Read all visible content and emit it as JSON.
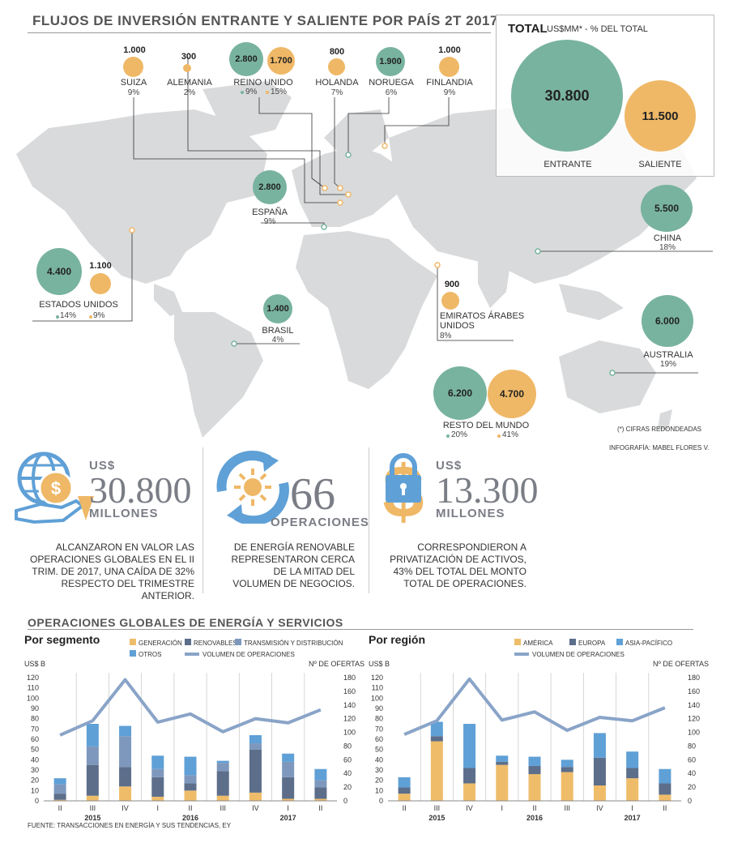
{
  "title": "FLUJOS DE INVERSIÓN ENTRANTE Y SALIENTE POR PAÍS 2T 2017",
  "colors": {
    "entrante": "#78b39f",
    "saliente": "#efb867",
    "map": "#d9dadb",
    "generacion": "#efbd6a",
    "renovables": "#5c6e8a",
    "transmision": "#7e98bd",
    "otros": "#5fa0d6",
    "volumen": "#8aa4c8"
  },
  "total": {
    "label": "TOTAL",
    "units": "US$MM* - % DEL TOTAL",
    "entrante_value": "30.800",
    "saliente_value": "11.500",
    "entrante_label": "ENTRANTE",
    "saliente_label": "SALIENTE"
  },
  "countries": {
    "suiza": {
      "name": "SUIZA",
      "value": "1.000",
      "pct": "9%"
    },
    "alemania": {
      "name": "ALEMANIA",
      "value": "300",
      "pct": "2%"
    },
    "reino_unido": {
      "name": "REINO UNIDO",
      "value_in": "2.800",
      "value_out": "1.700",
      "pct_in": "9%",
      "pct_out": "15%"
    },
    "holanda": {
      "name": "HOLANDA",
      "value": "800",
      "pct": "7%"
    },
    "noruega": {
      "name": "NORUEGA",
      "value": "1.900",
      "pct": "6%"
    },
    "finlandia": {
      "name": "FINLANDIA",
      "value": "1.000",
      "pct": "9%"
    },
    "espana": {
      "name": "ESPAÑA",
      "value": "2.800",
      "pct": "9%"
    },
    "china": {
      "name": "CHINA",
      "value": "5.500",
      "pct": "18%"
    },
    "estados_unidos": {
      "name": "ESTADOS UNIDOS",
      "value_in": "4.400",
      "value_out": "1.100",
      "pct_in": "14%",
      "pct_out": "9%"
    },
    "brasil": {
      "name": "BRASIL",
      "value": "1.400",
      "pct": "4%"
    },
    "emiratos": {
      "name1": "EMIRATOS ÁRABES",
      "name2": "UNIDOS",
      "value": "900",
      "pct": "8%"
    },
    "australia": {
      "name": "AUSTRALIA",
      "value": "6.000",
      "pct": "19%"
    },
    "resto": {
      "name": "RESTO DEL MUNDO",
      "value_in": "6.200",
      "value_out": "4.700",
      "pct_in": "20%",
      "pct_out": "41%"
    }
  },
  "notes": {
    "rounded": "(*) CIFRAS REDONDEADAS",
    "credit": "INFOGRAFÍA: MABEL FLORES V."
  },
  "stats": [
    {
      "prefix": "US$",
      "big": "30.800",
      "unit": "MILLONES",
      "desc": [
        "ALCANZARON EN VALOR LAS",
        "OPERACIONES GLOBALES EN EL II",
        "TRIM. DE 2017, UNA CAÍDA DE 32%",
        "RESPECTO DEL TRIMESTRE ANTERIOR."
      ]
    },
    {
      "prefix": "",
      "big": "66",
      "unit": "OPERACIONES",
      "desc": [
        "DE ENERGÍA RENOVABLE",
        "REPRESENTARON CERCA",
        "DE LA MITAD DEL",
        "VOLUMEN DE NEGOCIOS."
      ]
    },
    {
      "prefix": "US$",
      "big": "13.300",
      "unit": "MILLONES",
      "desc": [
        "CORRESPONDIERON A",
        "PRIVATIZACIÓN DE ACTIVOS,",
        "43% DEL TOTAL DEL MONTO",
        "TOTAL DE OPERACIONES."
      ]
    }
  ],
  "section_title": "OPERACIONES GLOBALES DE ENERGÍA Y SERVICIOS",
  "source": "FUENTE: TRANSACCIONES EN ENERGÍA Y SUS TENDENCIAS, EY",
  "chart_data": [
    {
      "type": "bar",
      "title": "Por segmento",
      "ylabel": "US$ B",
      "y2label": "Nº DE OFERTAS",
      "ylim": [
        0,
        120
      ],
      "y2lim": [
        0,
        180
      ],
      "yticks": [
        "0",
        "10",
        "20",
        "30",
        "40",
        "50",
        "60",
        "70",
        "80",
        "90",
        "100",
        "110",
        "120"
      ],
      "y2ticks": [
        "0",
        "20",
        "40",
        "60",
        "80",
        "100",
        "120",
        "140",
        "160",
        "180"
      ],
      "categories": [
        "II",
        "III",
        "IV",
        "I",
        "II",
        "III",
        "IV",
        "I",
        "II"
      ],
      "years": [
        "2015",
        "2016",
        "2017"
      ],
      "legend": [
        "GENERACIÓN",
        "RENOVABLES",
        "TRANSMISIÓN Y DISTRIBUCIÓN",
        "OTROS",
        "VOLUMEN DE OPERACIONES"
      ],
      "series": [
        {
          "name": "GENERACIÓN",
          "values": [
            1,
            5,
            14,
            4,
            10,
            5,
            8,
            2,
            2
          ]
        },
        {
          "name": "RENOVABLES",
          "values": [
            6,
            30,
            19,
            19,
            7,
            24,
            42,
            21,
            11
          ]
        },
        {
          "name": "TRANSMISIÓN Y DISTRIBUCIÓN",
          "values": [
            9,
            18,
            30,
            8,
            8,
            8,
            6,
            15,
            7
          ]
        },
        {
          "name": "OTROS",
          "values": [
            6,
            22,
            10,
            13,
            18,
            2,
            8,
            8,
            11
          ]
        },
        {
          "name": "VOLUMEN DE OPERACIONES",
          "axis": "right",
          "values": [
            96,
            117,
            177,
            115,
            127,
            101,
            120,
            114,
            133
          ]
        }
      ]
    },
    {
      "type": "bar",
      "title": "Por región",
      "ylabel": "US$ B",
      "y2label": "Nº DE OFERTAS",
      "ylim": [
        0,
        120
      ],
      "y2lim": [
        0,
        180
      ],
      "yticks": [
        "0",
        "10",
        "20",
        "30",
        "40",
        "50",
        "60",
        "70",
        "80",
        "90",
        "100",
        "110",
        "120"
      ],
      "y2ticks": [
        "0",
        "20",
        "40",
        "60",
        "80",
        "100",
        "120",
        "140",
        "160",
        "180"
      ],
      "categories": [
        "II",
        "III",
        "IV",
        "I",
        "II",
        "III",
        "IV",
        "I",
        "II"
      ],
      "years": [
        "2015",
        "2016",
        "2017"
      ],
      "legend": [
        "AMÉRICA",
        "EUROPA",
        "ASIA-PACÍFICO",
        "VOLUMEN DE OPERACIONES"
      ],
      "series": [
        {
          "name": "AMÉRICA",
          "values": [
            7,
            58,
            17,
            35,
            26,
            28,
            15,
            22,
            6
          ]
        },
        {
          "name": "EUROPA",
          "values": [
            6,
            5,
            15,
            3,
            8,
            5,
            27,
            10,
            11
          ]
        },
        {
          "name": "ASIA-PACÍFICO",
          "values": [
            10,
            14,
            43,
            6,
            9,
            7,
            24,
            16,
            14
          ]
        },
        {
          "name": "VOLUMEN DE OPERACIONES",
          "axis": "right",
          "values": [
            97,
            117,
            178,
            118,
            130,
            103,
            122,
            117,
            136
          ]
        }
      ]
    }
  ]
}
